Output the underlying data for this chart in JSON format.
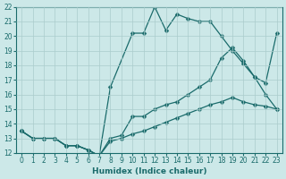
{
  "xlabel": "Humidex (Indice chaleur)",
  "background_color": "#cce8e8",
  "grid_color": "#aacccc",
  "line_color": "#1a6b6b",
  "xlim": [
    -0.5,
    23.5
  ],
  "ylim": [
    12,
    22
  ],
  "xticks": [
    0,
    1,
    2,
    3,
    4,
    5,
    6,
    7,
    8,
    9,
    10,
    11,
    12,
    13,
    14,
    15,
    16,
    17,
    18,
    19,
    20,
    21,
    22,
    23
  ],
  "yticks": [
    12,
    13,
    14,
    15,
    16,
    17,
    18,
    19,
    20,
    21,
    22
  ],
  "line1_x": [
    0,
    1,
    2,
    3,
    4,
    5,
    6,
    7,
    8,
    10,
    11,
    12,
    13,
    14,
    15,
    16,
    17,
    18,
    19,
    20,
    21,
    22,
    23
  ],
  "line1_y": [
    13.5,
    13,
    13,
    13,
    12.5,
    12.5,
    12.2,
    11.8,
    16.5,
    20.2,
    20.2,
    22,
    20.4,
    21.5,
    21.2,
    21,
    21,
    20,
    19,
    18.1,
    17.2,
    16,
    15
  ],
  "line2_x": [
    0,
    1,
    2,
    3,
    4,
    5,
    6,
    7,
    8,
    9,
    10,
    11,
    12,
    13,
    14,
    15,
    16,
    17,
    18,
    19,
    20,
    21,
    22,
    23
  ],
  "line2_y": [
    13.5,
    13,
    13,
    13,
    12.5,
    12.5,
    12.2,
    11.8,
    13,
    13.2,
    14.5,
    14.5,
    15,
    15.3,
    15.5,
    16,
    16.5,
    17,
    18.5,
    19.2,
    18.3,
    17.2,
    16.8,
    20.2
  ],
  "line3_x": [
    0,
    1,
    2,
    3,
    4,
    5,
    6,
    7,
    8,
    9,
    10,
    11,
    12,
    13,
    14,
    15,
    16,
    17,
    18,
    19,
    20,
    21,
    22,
    23
  ],
  "line3_y": [
    13.5,
    13,
    13,
    13,
    12.5,
    12.5,
    12.2,
    11.8,
    12.8,
    13,
    13.3,
    13.5,
    13.8,
    14.1,
    14.4,
    14.7,
    15,
    15.3,
    15.5,
    15.8,
    15.5,
    15.3,
    15.2,
    15
  ],
  "marker_size": 2.5,
  "linewidth": 0.9,
  "tick_fontsize": 5.5,
  "xlabel_fontsize": 6.5
}
